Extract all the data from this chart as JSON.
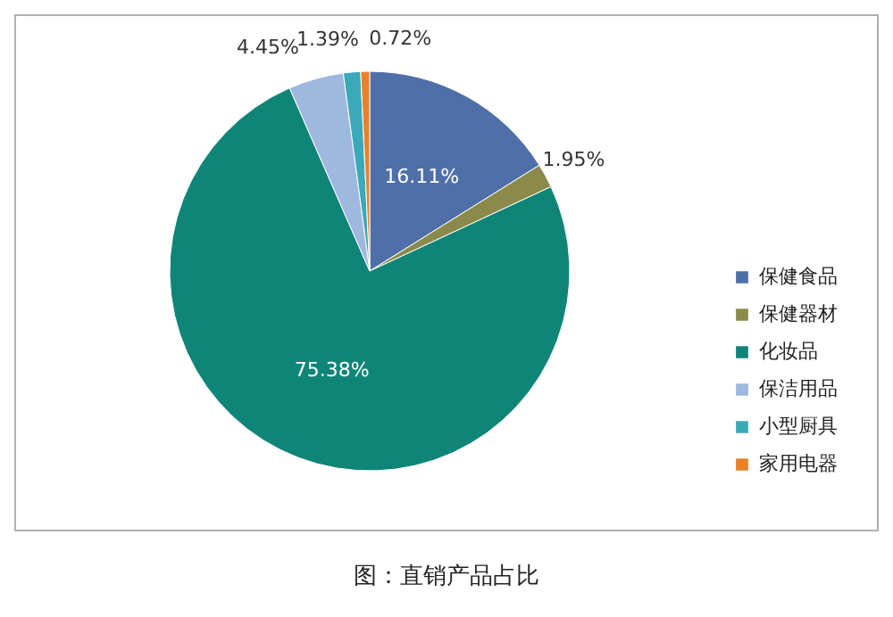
{
  "chart_data": {
    "type": "pie",
    "categories": [
      "保健食品",
      "保健器材",
      "化妆品",
      "保洁用品",
      "小型厨具",
      "家用电器"
    ],
    "values": [
      16.11,
      1.95,
      75.38,
      4.45,
      1.39,
      0.72
    ],
    "value_labels": [
      "16.11%",
      "1.95%",
      "75.38%",
      "4.45%",
      "1.39%",
      "0.72%"
    ],
    "colors": [
      "#4f6fa8",
      "#8b8a4a",
      "#0f8578",
      "#9fb8de",
      "#3aa9b8",
      "#e8822a"
    ],
    "legend": "right",
    "annotations": [
      "图：直销产品占比"
    ]
  }
}
